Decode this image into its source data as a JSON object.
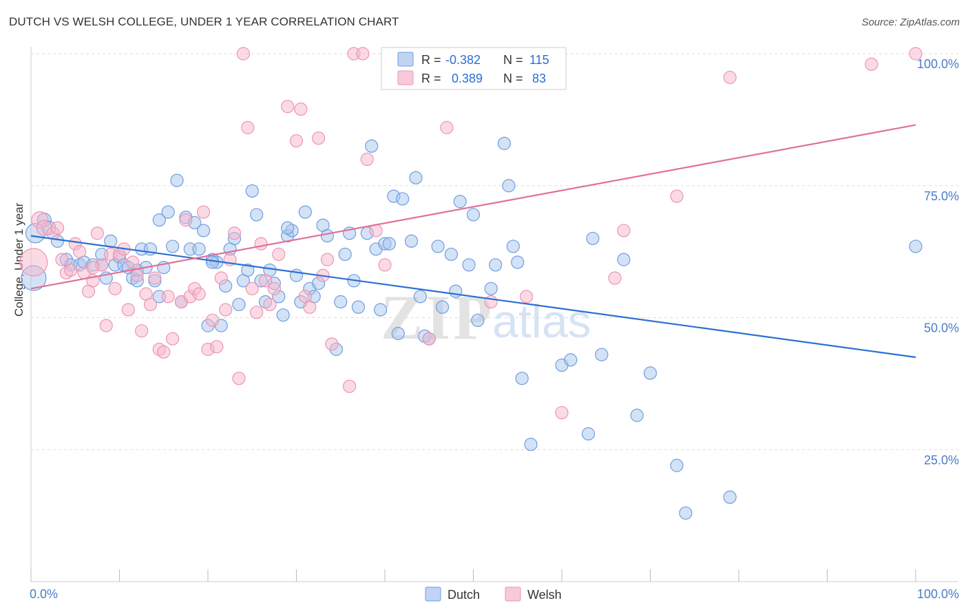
{
  "header": {
    "title": "DUTCH VS WELSH COLLEGE, UNDER 1 YEAR CORRELATION CHART",
    "source": "Source: ZipAtlas.com"
  },
  "colors": {
    "dutch_fill": "#a9c6ee",
    "dutch_stroke": "#6d9de0",
    "dutch_line": "#2a6fd4",
    "welsh_fill": "#f6b8cc",
    "welsh_stroke": "#ee93b2",
    "welsh_line": "#e0709a",
    "tick_text": "#4a7cc8",
    "grid": "#dddddd"
  },
  "legend_top": {
    "rows": [
      {
        "series": "Dutch",
        "r_label": "R =",
        "r_value": "-0.382",
        "n_label": "N =",
        "n_value": "115"
      },
      {
        "series": "Welsh",
        "r_label": "R =",
        "r_value": "0.389",
        "n_label": "N =",
        "n_value": "83"
      }
    ]
  },
  "legend_bottom": [
    "Dutch",
    "Welsh"
  ],
  "watermark": {
    "zip": "ZIP",
    "atlas": "atlas"
  },
  "chart_data": {
    "type": "scatter",
    "title": "DUTCH VS WELSH COLLEGE, UNDER 1 YEAR CORRELATION CHART",
    "xlabel": "",
    "ylabel": "College, Under 1 year",
    "xlim": [
      0,
      100
    ],
    "ylim": [
      0,
      100
    ],
    "x_tick_labels": [
      "0.0%",
      "100.0%"
    ],
    "y_tick_labels": [
      "25.0%",
      "50.0%",
      "75.0%",
      "100.0%"
    ],
    "y_ticks": [
      25,
      50,
      75,
      100
    ],
    "grid": true,
    "legend_position": "top-center",
    "series": [
      {
        "name": "Dutch",
        "r": -0.382,
        "n": 115,
        "trend": {
          "x": [
            0,
            100
          ],
          "y": [
            65.5,
            42.5
          ]
        },
        "points": [
          [
            0.3,
            57.5,
            18
          ],
          [
            0.5,
            66,
            14
          ],
          [
            1.5,
            68.5,
            10
          ],
          [
            2,
            67,
            10
          ],
          [
            3,
            64.5,
            9
          ],
          [
            4,
            61,
            9
          ],
          [
            4.5,
            60,
            9
          ],
          [
            5.5,
            60,
            9
          ],
          [
            6,
            60.5,
            9
          ],
          [
            7,
            60,
            9
          ],
          [
            8,
            60,
            9
          ],
          [
            8,
            62,
            9
          ],
          [
            8.5,
            57.5,
            9
          ],
          [
            9,
            64.5,
            9
          ],
          [
            9.5,
            60,
            9
          ],
          [
            10,
            61.5,
            9
          ],
          [
            10.5,
            60,
            9
          ],
          [
            11,
            59.5,
            9
          ],
          [
            11.5,
            57.5,
            9
          ],
          [
            12,
            59,
            9
          ],
          [
            12,
            57,
            9
          ],
          [
            12.5,
            63,
            9
          ],
          [
            13,
            59.5,
            9
          ],
          [
            13.5,
            63,
            9
          ],
          [
            14,
            57,
            9
          ],
          [
            14.5,
            54,
            9
          ],
          [
            14.5,
            68.5,
            9
          ],
          [
            15,
            59.5,
            9
          ],
          [
            15.5,
            70,
            9
          ],
          [
            16,
            63.5,
            9
          ],
          [
            16.5,
            76,
            9
          ],
          [
            17,
            53,
            9
          ],
          [
            17.5,
            69,
            9
          ],
          [
            18,
            63,
            9
          ],
          [
            18.5,
            68,
            9
          ],
          [
            19,
            63,
            9
          ],
          [
            19.5,
            66.5,
            9
          ],
          [
            20,
            48.5,
            9
          ],
          [
            20.5,
            61,
            9
          ],
          [
            21,
            60.5,
            9
          ],
          [
            21.5,
            48.5,
            9
          ],
          [
            22,
            56,
            9
          ],
          [
            22.5,
            63,
            9
          ],
          [
            23,
            65,
            9
          ],
          [
            23.5,
            52.5,
            9
          ],
          [
            24,
            57,
            9
          ],
          [
            24.5,
            59,
            9
          ],
          [
            25,
            74,
            9
          ],
          [
            25.5,
            69.5,
            9
          ],
          [
            26,
            57,
            9
          ],
          [
            26.5,
            53,
            9
          ],
          [
            27,
            59,
            9
          ],
          [
            27.5,
            56.5,
            9
          ],
          [
            28,
            54,
            9
          ],
          [
            28.5,
            50.5,
            9
          ],
          [
            29,
            65.5,
            9
          ],
          [
            29.5,
            66.5,
            9
          ],
          [
            30,
            58,
            9
          ],
          [
            30.5,
            53,
            9
          ],
          [
            31,
            70,
            9
          ],
          [
            31.5,
            55.5,
            9
          ],
          [
            32,
            54,
            9
          ],
          [
            32.5,
            56.5,
            9
          ],
          [
            33,
            67.5,
            9
          ],
          [
            33.5,
            65.5,
            9
          ],
          [
            34.5,
            44,
            9
          ],
          [
            35,
            53,
            9
          ],
          [
            35.5,
            62,
            9
          ],
          [
            36,
            66,
            9
          ],
          [
            36.5,
            57,
            9
          ],
          [
            37,
            52,
            9
          ],
          [
            38,
            66,
            9
          ],
          [
            38.5,
            82.5,
            9
          ],
          [
            39,
            63,
            9
          ],
          [
            39.5,
            51.5,
            9
          ],
          [
            40,
            64,
            9
          ],
          [
            40.5,
            64,
            9
          ],
          [
            41,
            73,
            9
          ],
          [
            41.5,
            47,
            9
          ],
          [
            42,
            72.5,
            9
          ],
          [
            43,
            64.5,
            9
          ],
          [
            43.5,
            76.5,
            9
          ],
          [
            44,
            54,
            9
          ],
          [
            44.5,
            46.5,
            9
          ],
          [
            45,
            46,
            9
          ],
          [
            46,
            63.5,
            9
          ],
          [
            46.5,
            52,
            9
          ],
          [
            47.5,
            62,
            9
          ],
          [
            48,
            55,
            9
          ],
          [
            48.5,
            72,
            9
          ],
          [
            49.5,
            60,
            9
          ],
          [
            50,
            69.5,
            9
          ],
          [
            50.5,
            49.5,
            9
          ],
          [
            52,
            55.5,
            9
          ],
          [
            52.5,
            60,
            9
          ],
          [
            53.5,
            83,
            9
          ],
          [
            54,
            75,
            9
          ],
          [
            54.5,
            63.5,
            9
          ],
          [
            55,
            60.5,
            9
          ],
          [
            55.5,
            38.5,
            9
          ],
          [
            56.5,
            26,
            9
          ],
          [
            60,
            41,
            9
          ],
          [
            61,
            42,
            9
          ],
          [
            63,
            28,
            9
          ],
          [
            63.5,
            65,
            9
          ],
          [
            64.5,
            43,
            9
          ],
          [
            67,
            61,
            9
          ],
          [
            68.5,
            31.5,
            9
          ],
          [
            70,
            39.5,
            9
          ],
          [
            73,
            22,
            9
          ],
          [
            74,
            13,
            9
          ],
          [
            79,
            16,
            9
          ],
          [
            100,
            63.5,
            9
          ],
          [
            20.5,
            60.5,
            9
          ],
          [
            29,
            67,
            9
          ]
        ]
      },
      {
        "name": "Welsh",
        "r": 0.389,
        "n": 83,
        "trend": {
          "x": [
            0,
            100
          ],
          "y": [
            55.5,
            86.5
          ]
        },
        "points": [
          [
            0.3,
            60.5,
            20
          ],
          [
            1,
            68.5,
            12
          ],
          [
            1.5,
            67,
            11
          ],
          [
            2.5,
            66,
            9
          ],
          [
            3.5,
            61,
            9
          ],
          [
            4,
            58.5,
            9
          ],
          [
            4.5,
            59,
            9
          ],
          [
            5,
            64,
            9
          ],
          [
            5.5,
            62.5,
            9
          ],
          [
            6,
            58.5,
            9
          ],
          [
            6.5,
            55,
            9
          ],
          [
            7,
            57,
            9
          ],
          [
            7.5,
            66,
            9
          ],
          [
            8,
            60,
            9
          ],
          [
            8.5,
            48.5,
            9
          ],
          [
            9,
            62,
            9
          ],
          [
            9.5,
            55.5,
            9
          ],
          [
            10,
            62,
            9
          ],
          [
            10.5,
            63,
            9
          ],
          [
            11,
            51.5,
            9
          ],
          [
            11.5,
            60.5,
            9
          ],
          [
            12,
            58,
            9
          ],
          [
            12.5,
            47.5,
            9
          ],
          [
            13,
            54.5,
            9
          ],
          [
            13.5,
            52.5,
            9
          ],
          [
            14,
            57.5,
            9
          ],
          [
            14.5,
            44,
            9
          ],
          [
            15,
            43.5,
            9
          ],
          [
            15.5,
            54,
            9
          ],
          [
            16,
            46,
            9
          ],
          [
            17,
            53,
            9
          ],
          [
            17.5,
            68.5,
            9
          ],
          [
            18,
            54,
            9
          ],
          [
            18.5,
            55.5,
            9
          ],
          [
            19,
            54.5,
            9
          ],
          [
            19.5,
            70,
            9
          ],
          [
            20,
            44,
            9
          ],
          [
            20.5,
            49.5,
            9
          ],
          [
            21,
            44.5,
            9
          ],
          [
            21.5,
            57.5,
            9
          ],
          [
            22,
            51.5,
            9
          ],
          [
            22.5,
            61,
            9
          ],
          [
            23,
            66,
            9
          ],
          [
            23.5,
            38.5,
            9
          ],
          [
            24,
            100,
            9
          ],
          [
            24.5,
            86,
            9
          ],
          [
            25,
            55.5,
            9
          ],
          [
            25.5,
            51,
            9
          ],
          [
            26,
            64,
            9
          ],
          [
            26.5,
            57,
            9
          ],
          [
            27,
            52.5,
            9
          ],
          [
            27.5,
            55.5,
            9
          ],
          [
            28,
            62,
            9
          ],
          [
            29,
            90,
            9
          ],
          [
            30,
            83.5,
            9
          ],
          [
            30.5,
            89.5,
            9
          ],
          [
            31,
            54,
            9
          ],
          [
            31.5,
            52,
            9
          ],
          [
            32.5,
            84,
            9
          ],
          [
            33,
            58,
            9
          ],
          [
            33.5,
            61,
            9
          ],
          [
            34,
            45,
            9
          ],
          [
            36,
            37,
            9
          ],
          [
            36.5,
            100,
            9
          ],
          [
            37.5,
            100,
            9
          ],
          [
            38,
            80,
            9
          ],
          [
            39,
            66.5,
            9
          ],
          [
            40,
            60,
            9
          ],
          [
            41,
            100,
            9
          ],
          [
            45,
            46,
            9
          ],
          [
            47,
            86,
            9
          ],
          [
            52,
            53,
            9
          ],
          [
            56,
            54,
            9
          ],
          [
            60,
            32,
            9
          ],
          [
            66,
            57.5,
            9
          ],
          [
            67,
            66.5,
            9
          ],
          [
            73,
            73,
            9
          ],
          [
            79,
            95.5,
            9
          ],
          [
            95,
            98,
            9
          ],
          [
            100,
            100,
            9
          ],
          [
            42,
            100,
            9
          ],
          [
            7,
            59.5,
            9
          ],
          [
            3,
            67,
            9
          ]
        ]
      }
    ]
  }
}
